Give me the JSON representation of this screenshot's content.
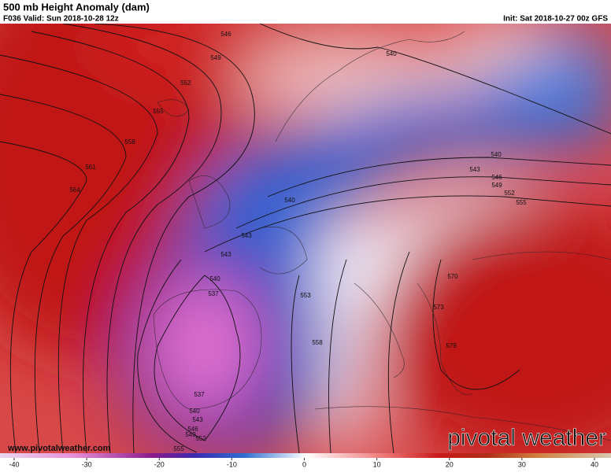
{
  "header": {
    "title": "500 mb Height Anomaly (dam)",
    "valid": "F036 Valid: Sun 2018-10-28 12z",
    "init": "Init: Sat 2018-10-27 00z GFS"
  },
  "map": {
    "contour_labels": [
      546,
      549,
      552,
      555,
      558,
      561,
      564,
      540,
      540,
      543,
      546,
      549,
      552,
      555,
      540,
      543,
      543,
      540,
      537,
      553,
      570,
      573,
      579,
      558,
      537,
      540,
      543,
      546,
      549,
      552,
      555
    ]
  },
  "footer": {
    "website": "www.pivotalweather.com",
    "brand": "pivotal weather"
  },
  "colorbar": {
    "ticks": [
      -40,
      -30,
      -20,
      -10,
      0,
      10,
      20,
      30,
      40
    ],
    "lim": [
      -40,
      40
    ]
  }
}
